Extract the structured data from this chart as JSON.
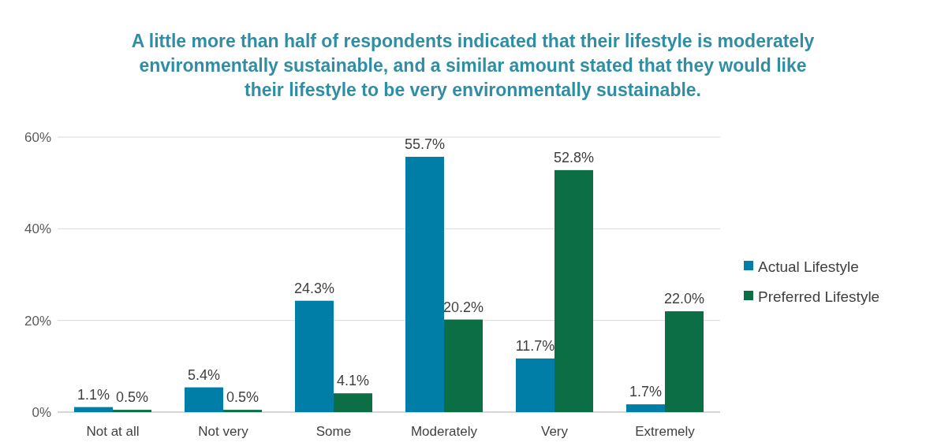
{
  "chart_data": {
    "type": "bar",
    "title": "A little more than half of respondents indicated that their lifestyle is moderately environmentally sustainable, and a similar amount stated that they would like their lifestyle to be very environmentally sustainable.",
    "categories": [
      "Not at all",
      "Not very",
      "Some",
      "Moderately",
      "Very",
      "Extremely"
    ],
    "series": [
      {
        "name": "Actual Lifestyle",
        "color": "#007ea7",
        "values": [
          1.1,
          5.4,
          24.3,
          55.7,
          11.7,
          1.7
        ],
        "value_labels": [
          "1.1%",
          "5.4%",
          "24.3%",
          "55.7%",
          "11.7%",
          "1.7%"
        ]
      },
      {
        "name": "Preferred Lifestyle",
        "color": "#0b6e45",
        "values": [
          0.5,
          0.5,
          4.1,
          20.2,
          52.8,
          22.0
        ],
        "value_labels": [
          "0.5%",
          "0.5%",
          "4.1%",
          "20.2%",
          "52.8%",
          "22.0%"
        ]
      }
    ],
    "ylim": [
      0,
      60
    ],
    "yticks": [
      {
        "value": 0,
        "label": "0%"
      },
      {
        "value": 20,
        "label": "20%"
      },
      {
        "value": 40,
        "label": "40%"
      },
      {
        "value": 60,
        "label": "60%"
      }
    ],
    "grid": "y",
    "legend": "right"
  }
}
